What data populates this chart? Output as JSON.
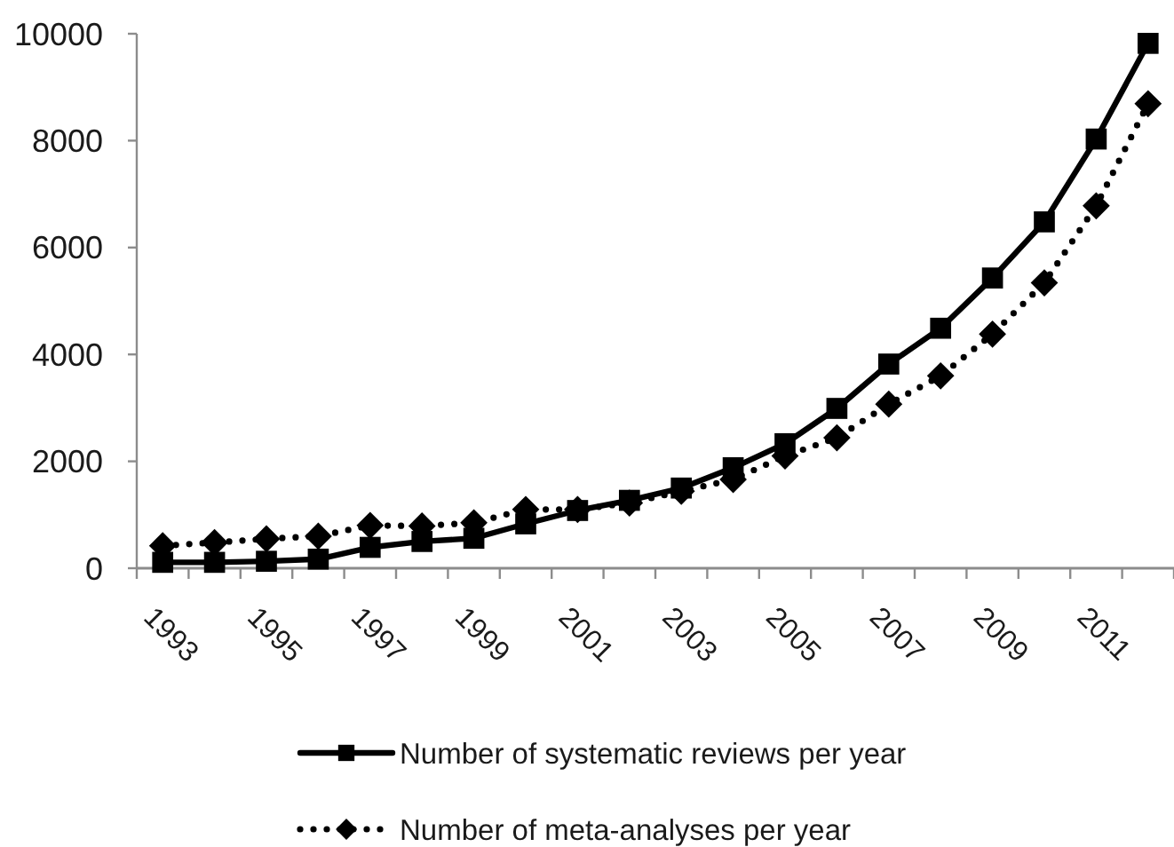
{
  "chart_data": {
    "type": "line",
    "categories": [
      "1993",
      null,
      "1995",
      null,
      "1997",
      null,
      "1999",
      null,
      "2001",
      null,
      "2003",
      null,
      "2005",
      null,
      "2007",
      null,
      "2009",
      null,
      "2011",
      null
    ],
    "ylim": [
      0,
      10000
    ],
    "yticks": [
      0,
      2000,
      4000,
      6000,
      8000,
      10000
    ],
    "legend": "bottom",
    "series": [
      {
        "name": "Number of systematic reviews per year",
        "color": "#000000",
        "marker": "square",
        "line_style": "solid",
        "values": [
          110,
          110,
          130,
          170,
          390,
          500,
          560,
          830,
          1080,
          1270,
          1500,
          1880,
          2330,
          2990,
          3820,
          4490,
          5430,
          6480,
          8030,
          9820
        ]
      },
      {
        "name": "Number of meta-analyses per year",
        "color": "#000000",
        "marker": "diamond",
        "line_style": "dotted",
        "values": [
          420,
          480,
          550,
          600,
          800,
          790,
          850,
          1100,
          1100,
          1220,
          1440,
          1660,
          2100,
          2440,
          3070,
          3600,
          4380,
          5340,
          6780,
          8690
        ]
      }
    ]
  }
}
